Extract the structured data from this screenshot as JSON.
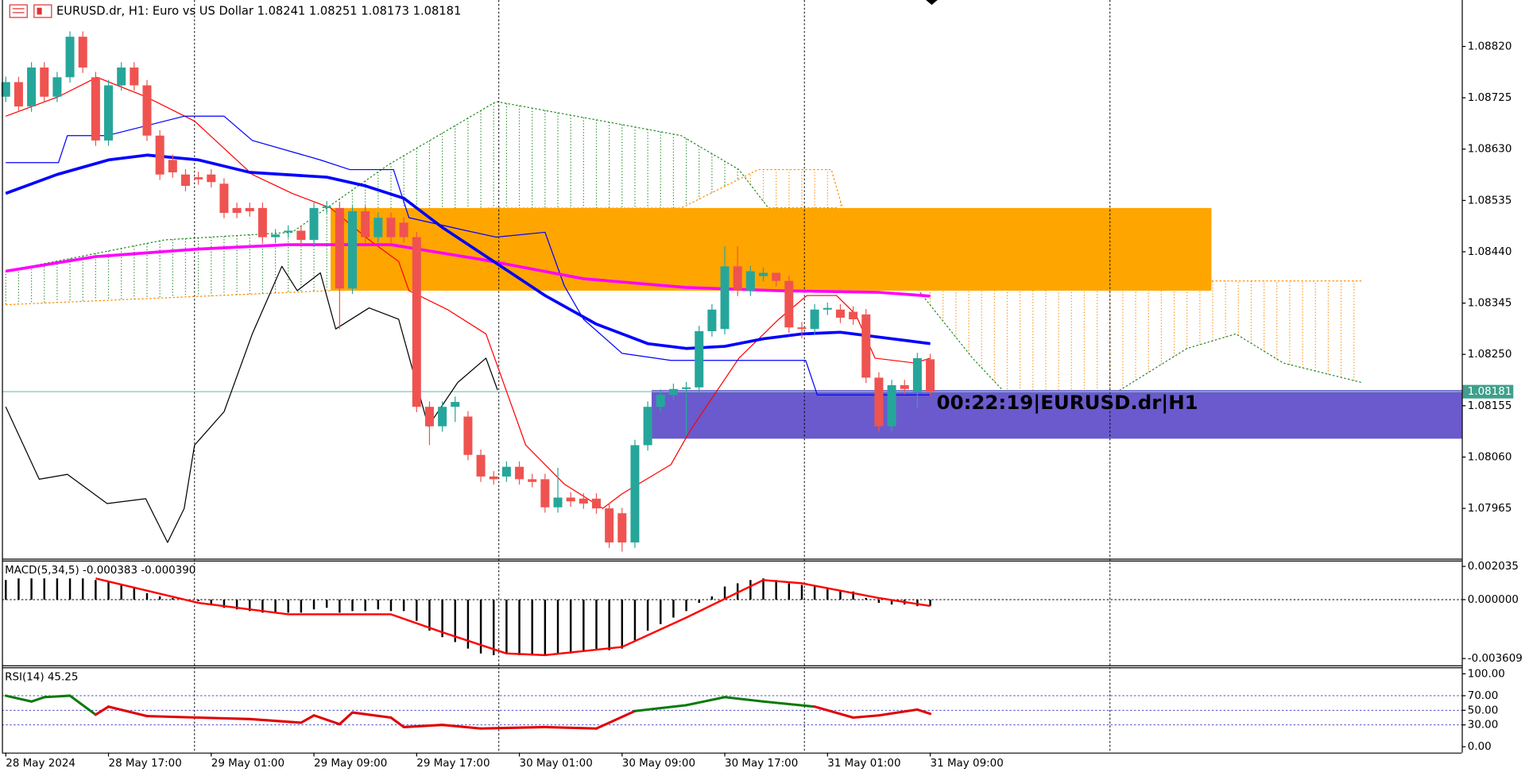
{
  "chart_data": [
    {
      "type": "candlestick",
      "title": "EURUSD.dr, H1:  Euro vs US Dollar  1.08241 1.08251 1.08173 1.08181",
      "timer_label": "00:22:19|EURUSD.dr|H1",
      "categories": [
        "28 May 2024",
        null,
        null,
        null,
        null,
        null,
        null,
        null,
        "28 May 17:00",
        null,
        null,
        null,
        null,
        null,
        null,
        null,
        "29 May 01:00",
        null,
        null,
        null,
        null,
        null,
        null,
        null,
        "29 May 09:00",
        null,
        null,
        null,
        null,
        null,
        null,
        null,
        "29 May 17:00",
        null,
        null,
        null,
        null,
        null,
        null,
        null,
        "30 May 01:00",
        null,
        null,
        null,
        null,
        null,
        null,
        null,
        "30 May 09:00",
        null,
        null,
        null,
        null,
        null,
        null,
        null,
        "30 May 17:00",
        null,
        null,
        null,
        null,
        null,
        null,
        null,
        "31 May 01:00",
        null,
        null,
        null,
        null,
        null,
        null,
        null,
        "31 May 09:00"
      ],
      "open": [
        1.08727,
        1.08754,
        1.08709,
        1.08781,
        1.08727,
        1.08763,
        1.08838,
        1.08763,
        1.08646,
        1.08748,
        1.08781,
        1.08748,
        1.08655,
        1.0861,
        1.08583,
        1.08578,
        1.08583,
        1.08566,
        1.08521,
        1.08521,
        1.08521,
        1.08467,
        1.08476,
        1.08479,
        1.08462,
        1.08521,
        1.08521,
        1.08372,
        1.08515,
        1.08467,
        1.08503,
        1.08494,
        1.08467,
        1.08153,
        1.08117,
        1.08153,
        1.08135,
        1.08064,
        1.08024,
        1.08024,
        1.08042,
        1.08019,
        1.08019,
        1.07967,
        1.07985,
        1.07983,
        1.07983,
        1.07965,
        1.07956,
        1.07902,
        1.08082,
        1.08153,
        1.08175,
        1.08186,
        1.08189,
        1.08293,
        1.08297,
        1.08413,
        1.08368,
        1.08395,
        1.08401,
        1.08386,
        1.083,
        1.08297,
        1.08333,
        1.08333,
        1.08329,
        1.08324,
        1.08207,
        1.08117,
        1.08193,
        1.0818,
        1.08241
      ],
      "high": [
        1.08764,
        1.08764,
        1.08791,
        1.08791,
        1.08773,
        1.08848,
        1.08848,
        1.08773,
        1.08758,
        1.08791,
        1.08791,
        1.08758,
        1.08665,
        1.0862,
        1.08593,
        1.08588,
        1.08593,
        1.08576,
        1.08531,
        1.08531,
        1.08531,
        1.08482,
        1.08489,
        1.08489,
        1.08531,
        1.08534,
        1.08531,
        1.08525,
        1.08525,
        1.08513,
        1.08513,
        1.08504,
        1.08477,
        1.08163,
        1.08163,
        1.08172,
        1.08145,
        1.08074,
        1.08034,
        1.08052,
        1.08052,
        1.08029,
        1.08029,
        1.0804,
        1.07995,
        1.07993,
        1.07993,
        1.07975,
        1.07966,
        1.08092,
        1.08163,
        1.08185,
        1.08196,
        1.08199,
        1.08303,
        1.08343,
        1.0845,
        1.0845,
        1.08414,
        1.08411,
        1.08396,
        1.08396,
        1.0831,
        1.08343,
        1.08346,
        1.08343,
        1.08339,
        1.08334,
        1.08217,
        1.08203,
        1.08203,
        1.08253,
        1.08251
      ],
      "low": [
        1.08717,
        1.08699,
        1.08699,
        1.08717,
        1.08717,
        1.08753,
        1.08771,
        1.08636,
        1.08636,
        1.08738,
        1.08738,
        1.08645,
        1.08573,
        1.08577,
        1.08552,
        1.08564,
        1.08559,
        1.08502,
        1.08502,
        1.08505,
        1.08457,
        1.08457,
        1.08466,
        1.08452,
        1.08452,
        1.08511,
        1.08297,
        1.08362,
        1.08457,
        1.08457,
        1.08457,
        1.08457,
        1.08143,
        1.08082,
        1.08107,
        1.08125,
        1.08054,
        1.08014,
        1.08009,
        1.08014,
        1.08009,
        1.08004,
        1.07957,
        1.07957,
        1.07968,
        1.07964,
        1.07955,
        1.07892,
        1.07885,
        1.07892,
        1.08072,
        1.08143,
        1.08165,
        1.081,
        1.08179,
        1.08283,
        1.08287,
        1.08358,
        1.08358,
        1.08385,
        1.08376,
        1.0829,
        1.0828,
        1.08287,
        1.08323,
        1.08308,
        1.08305,
        1.08197,
        1.08107,
        1.08107,
        1.08176,
        1.0815,
        1.08173
      ],
      "close": [
        1.08754,
        1.08709,
        1.08781,
        1.08727,
        1.08763,
        1.08838,
        1.08781,
        1.08646,
        1.08748,
        1.08781,
        1.08748,
        1.08655,
        1.08583,
        1.08587,
        1.08562,
        1.08574,
        1.08569,
        1.08512,
        1.08512,
        1.08515,
        1.08467,
        1.08472,
        1.08479,
        1.08462,
        1.08521,
        1.08524,
        1.08372,
        1.08515,
        1.08467,
        1.08503,
        1.08467,
        1.08467,
        1.08153,
        1.08117,
        1.08153,
        1.08162,
        1.08064,
        1.08024,
        1.08019,
        1.08042,
        1.08019,
        1.08014,
        1.07967,
        1.07985,
        1.07978,
        1.07974,
        1.07965,
        1.07902,
        1.07902,
        1.08082,
        1.08153,
        1.08175,
        1.08186,
        1.08189,
        1.08293,
        1.08333,
        1.08413,
        1.08368,
        1.08404,
        1.08401,
        1.08386,
        1.083,
        1.08297,
        1.08333,
        1.08336,
        1.08318,
        1.08315,
        1.08207,
        1.08117,
        1.08193,
        1.08186,
        1.08243,
        1.08181
      ],
      "up_color": "#26a69a",
      "down_color": "#ef5350",
      "xlim": [
        -0.45,
        113.4
      ],
      "ylim": [
        1.07872,
        1.08906
      ],
      "yticks": [
        {
          "value": 1.0882,
          "label": "1.08820"
        },
        1.08725,
        {
          "value": 1.0863,
          "label": "1.08630"
        },
        1.08535,
        {
          "value": 1.0844,
          "label": "1.08440"
        },
        1.08345,
        {
          "value": 1.0825,
          "label": "1.08250"
        },
        1.08155,
        {
          "value": 1.0806,
          "label": "1.08060"
        },
        1.07965
      ],
      "last_price": {
        "value": 1.08181,
        "label": "1.08181"
      },
      "vlines": [
        14.7,
        38.4,
        62.2,
        86
      ],
      "zones": [
        {
          "x": [
            25.3,
            93.9
          ],
          "y": [
            1.08368,
            1.08521
          ],
          "color": "#ffa500"
        },
        {
          "x": [
            50.3,
            113.4
          ],
          "y": [
            1.08094,
            1.08184
          ],
          "color": "#6a5acd"
        }
      ],
      "cloud": {
        "span_a": {
          "color": "#228b22",
          "x": [
            0,
            12.4,
            22.3,
            29.8,
            38.2,
            46.5,
            52.6,
            57.1,
            59.4,
            64.7,
            70.8,
            75.3,
            80.6,
            85.9,
            92,
            95.8,
            99.5,
            105.6
          ],
          "values": [
            1.08404,
            1.08462,
            1.08476,
            1.08601,
            1.08718,
            1.08682,
            1.08655,
            1.08592,
            1.08521,
            1.08521,
            1.08377,
            1.08243,
            1.08109,
            1.08171,
            1.08261,
            1.08288,
            1.08234,
            1.08198
          ]
        },
        "span_b": {
          "color": "#ff8c00",
          "x": [
            0,
            25.3,
            29.8,
            37.4,
            52.6,
            58.6,
            64.3,
            65.5,
            70,
            72.3,
            105.6
          ],
          "values": [
            1.08342,
            1.08368,
            1.08476,
            1.08521,
            1.08521,
            1.08592,
            1.08592,
            1.08494,
            1.08449,
            1.08386,
            1.08386
          ]
        }
      },
      "series": [
        {
          "color": "#ff0000",
          "width": 1,
          "x": [
            0,
            4.1,
            7.1,
            10.9,
            14.7,
            19.2,
            22.3,
            25.3,
            28.3,
            30.6,
            31.4,
            34.4,
            37.4,
            40.5,
            43.5,
            46.5,
            48,
            51.8,
            53.3,
            57.1,
            60.2,
            62.4,
            64.7,
            66.2,
            67.7,
            70.8,
            72
          ],
          "values": [
            1.08691,
            1.08727,
            1.08763,
            1.08727,
            1.08682,
            1.08583,
            1.08548,
            1.08521,
            1.08462,
            1.08422,
            1.08368,
            1.08333,
            1.08288,
            1.08082,
            1.0801,
            1.07965,
            1.07992,
            1.08046,
            1.08109,
            1.08243,
            1.08315,
            1.08359,
            1.08359,
            1.08324,
            1.08243,
            1.08234,
            1.08243
          ]
        },
        {
          "color": "#0000ff",
          "width": 1,
          "x": [
            0,
            4.1,
            4.8,
            7.9,
            13.9,
            17,
            19.2,
            24.5,
            26.8,
            30.2,
            31.4,
            35.9,
            38.2,
            42,
            43.5,
            45,
            48,
            51.8,
            62.3,
            63.2,
            65.5,
            72
          ],
          "values": [
            1.08605,
            1.08605,
            1.08655,
            1.08655,
            1.08691,
            1.08691,
            1.08646,
            1.0861,
            1.08592,
            1.08592,
            1.08503,
            1.08479,
            1.08467,
            1.08476,
            1.08377,
            1.08315,
            1.08252,
            1.08239,
            1.08239,
            1.08175,
            1.08175,
            1.08175
          ]
        },
        {
          "color": "#000000",
          "width": 1,
          "x": [
            0,
            2.6,
            4.8,
            7.9,
            10.9,
            12.6,
            13.9,
            14.7,
            17,
            19.2,
            21.5,
            22.7,
            24.5,
            25.7,
            28.3,
            30.6,
            32.9,
            35.2,
            37.4,
            38.3
          ],
          "values": [
            1.08153,
            1.08019,
            1.08028,
            1.07974,
            1.07983,
            1.07902,
            1.07965,
            1.08082,
            1.08144,
            1.08288,
            1.08413,
            1.08368,
            1.08401,
            1.08297,
            1.08336,
            1.08315,
            1.08117,
            1.08198,
            1.08243,
            1.08184
          ]
        },
        {
          "color": "#ff00ff",
          "width": 3,
          "x": [
            0,
            7,
            15,
            22,
            30,
            37,
            45,
            53,
            60,
            68,
            72
          ],
          "values": [
            1.08404,
            1.08431,
            1.08445,
            1.08453,
            1.08453,
            1.08426,
            1.0839,
            1.08374,
            1.08368,
            1.08365,
            1.08358
          ]
        },
        {
          "color": "#0000ff",
          "width": 3,
          "x": [
            0,
            4,
            8,
            11,
            15,
            19,
            25,
            28,
            31,
            34,
            38,
            42,
            46,
            50,
            53,
            56,
            59,
            62,
            65,
            68,
            72
          ],
          "values": [
            1.08548,
            1.08583,
            1.0861,
            1.08619,
            1.0861,
            1.08587,
            1.08578,
            1.08562,
            1.08539,
            1.08485,
            1.08422,
            1.08359,
            1.08306,
            1.0827,
            1.08261,
            1.08265,
            1.08279,
            1.08288,
            1.08291,
            1.08282,
            1.0827
          ]
        }
      ]
    },
    {
      "type": "bar",
      "title": "MACD(5,34,5) -0.000383 -0.000390",
      "color": "#000000",
      "values": [
        0.0012,
        0.0013,
        0.0013,
        0.0013,
        0.0013,
        0.0013,
        0.0013,
        0.0012,
        0.0011,
        0.0009,
        0.0007,
        0.0004,
        0.0002,
        0.0001,
        0,
        -0.0001,
        -0.0003,
        -0.0005,
        -0.0006,
        -0.0007,
        -0.0008,
        -0.0008,
        -0.0008,
        -0.0008,
        -0.0006,
        -0.0005,
        -0.0008,
        -0.0007,
        -0.0007,
        -0.0006,
        -0.0007,
        -0.0007,
        -0.0013,
        -0.0019,
        -0.0023,
        -0.0026,
        -0.003,
        -0.0033,
        -0.0034,
        -0.0033,
        -0.0034,
        -0.0034,
        -0.0034,
        -0.0033,
        -0.0033,
        -0.0032,
        -0.0031,
        -0.0031,
        -0.003,
        -0.0025,
        -0.0019,
        -0.0015,
        -0.0011,
        -0.0007,
        -0.0002,
        0.0002,
        0.0008,
        0.001,
        0.0012,
        0.0013,
        0.0012,
        0.001,
        0.0009,
        0.0008,
        0.0007,
        0.0006,
        0.0005,
        0.0001,
        -0.0002,
        -0.0003,
        -0.0003,
        -0.0004,
        -0.000383
      ],
      "series": [
        {
          "color": "#ff0000",
          "width": 2,
          "x": [
            7,
            15,
            22,
            30,
            34,
            39,
            42,
            48,
            53,
            59,
            62,
            68,
            72
          ],
          "values": [
            0.0013,
            -0.0002,
            -0.0009,
            -0.0009,
            -0.002,
            -0.0033,
            -0.0034,
            -0.0029,
            -0.0011,
            0.0012,
            0.001,
            0.0001,
            -0.00039
          ]
        }
      ],
      "ylim": [
        -0.004025,
        0.002392
      ],
      "yticks": [
        0.002035,
        {
          "value": 0,
          "label": "0.000000"
        },
        -0.003609
      ],
      "levels": [
        0
      ]
    },
    {
      "type": "line",
      "title": "RSI(14) 45.25",
      "series": [
        {
          "color_above": "#0a7a0a",
          "color_below": "#e00000",
          "color_split": 50,
          "x": [
            0,
            2,
            3,
            5,
            7,
            8,
            11,
            15,
            19,
            23,
            24,
            26,
            27,
            30,
            31,
            34,
            37,
            42,
            46,
            49,
            53,
            56,
            59,
            63,
            66,
            68,
            71,
            72
          ],
          "values": [
            70,
            62,
            68,
            70,
            44,
            55,
            42,
            40,
            38,
            33,
            43,
            31,
            47,
            40,
            27,
            30,
            25,
            27,
            25,
            49,
            57,
            68,
            62,
            55,
            40,
            43,
            51,
            45.25
          ]
        }
      ],
      "ylim": [
        -8,
        109
      ],
      "yticks": [
        {
          "value": 100,
          "label": "100.00"
        },
        {
          "value": 70,
          "label": "70.00"
        },
        {
          "value": 50,
          "label": "50.00"
        },
        {
          "value": 30,
          "label": "30.00"
        },
        {
          "value": 0,
          "label": "0.00"
        }
      ],
      "levels": [
        70,
        50,
        30
      ]
    }
  ]
}
